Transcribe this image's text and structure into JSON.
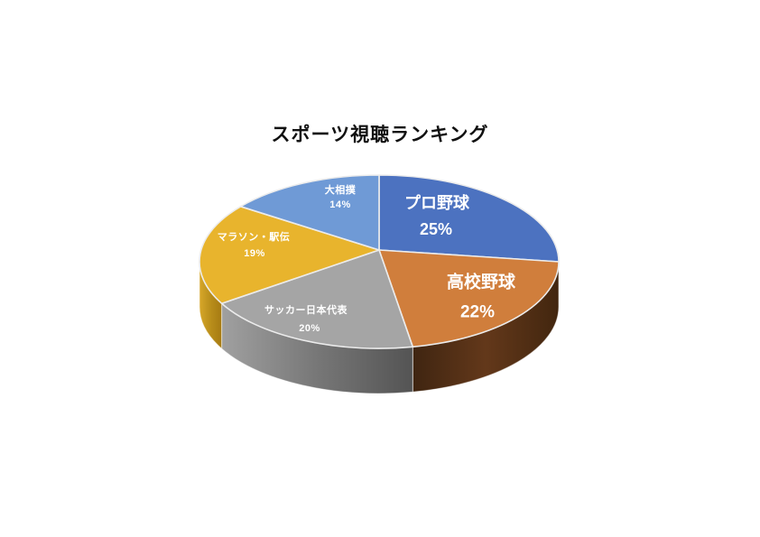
{
  "page": {
    "background": "#FFFFFF"
  },
  "chart_data": {
    "type": "pie",
    "style": "3d",
    "title": "スポーツ視聴ランキング",
    "legend_position": "none",
    "start_angle_deg": 0,
    "direction": "clockwise",
    "total": 100,
    "label_text_color": "#FFFFFF",
    "slices": [
      {
        "name": "プロ野球",
        "value": 25,
        "color": "#4C72C0",
        "side_colors": null
      },
      {
        "name": "高校野球",
        "value": 22,
        "color": "#D07E3C",
        "side_colors": [
          "#3F2511",
          "#63381A",
          "#42260F"
        ]
      },
      {
        "name": "サッカー日本代表",
        "value": 20,
        "color": "#A5A5A5",
        "side_colors": [
          "#A0A0A0",
          "#777777",
          "#545454"
        ]
      },
      {
        "name": "マラソン・駅伝",
        "value": 19,
        "color": "#E8B42D",
        "side_colors": [
          "#D7A729",
          "#B98E1B",
          "#A67A12"
        ]
      },
      {
        "name": "大相撲",
        "value": 14,
        "color": "#6F9AD6",
        "side_colors": null
      }
    ]
  }
}
